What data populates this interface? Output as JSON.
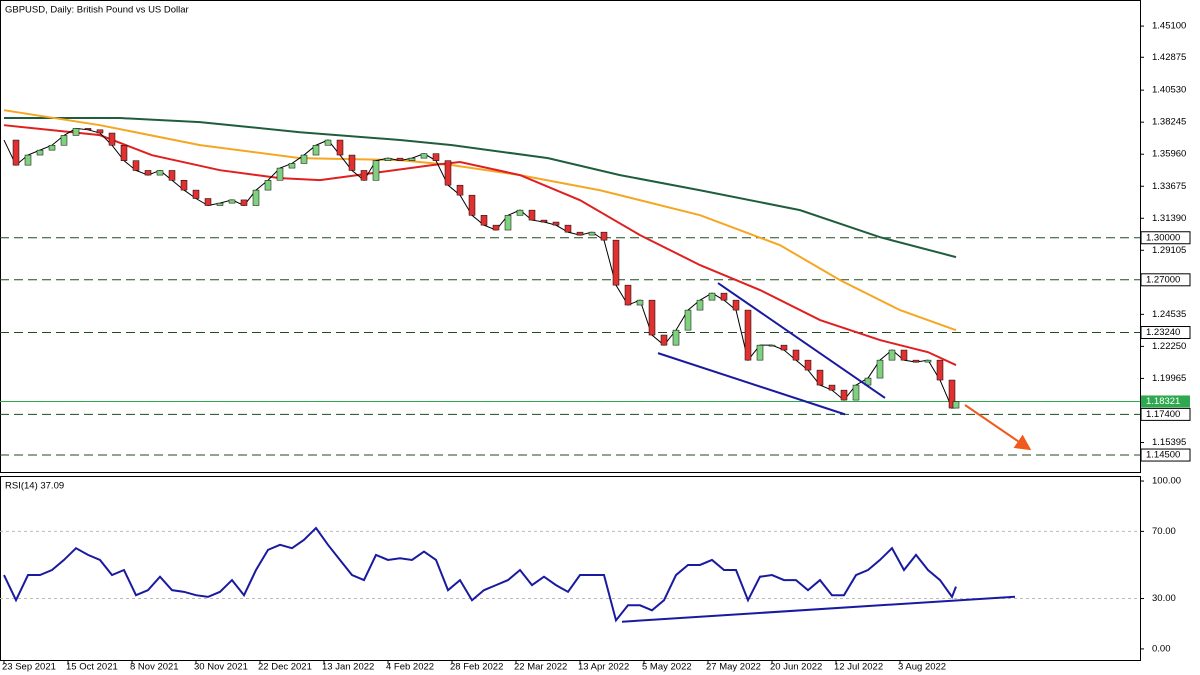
{
  "chart_data": [
    {
      "type": "price",
      "title": "GBPUSD, Daily:  British Pound vs US Dollar",
      "xlim": [
        -1,
        284
      ],
      "ylim": [
        1.1329,
        1.4696
      ],
      "yticks": [
        {
          "value": 1.451,
          "label": "1.45100"
        },
        {
          "value": 1.42875,
          "label": "1.42875"
        },
        {
          "value": 1.4053,
          "label": "1.40530"
        },
        {
          "value": 1.38245,
          "label": "1.38245"
        },
        {
          "value": 1.3596,
          "label": "1.35960"
        },
        {
          "value": 1.33675,
          "label": "1.33675"
        },
        {
          "value": 1.3139,
          "label": "1.31390"
        },
        {
          "value": 1.29105,
          "label": "1.29105"
        },
        {
          "value": 1.24535,
          "label": "1.24535"
        },
        {
          "value": 1.2225,
          "label": "1.22250"
        },
        {
          "value": 1.19965,
          "label": "1.19965"
        },
        {
          "value": 1.15395,
          "label": "1.15395"
        }
      ],
      "levels": [
        {
          "value": 1.3,
          "label": "1.30000"
        },
        {
          "value": 1.27,
          "label": "1.27000"
        },
        {
          "value": 1.2324,
          "label": "1.23240"
        },
        {
          "value": 1.174,
          "label": "1.17400"
        },
        {
          "value": 1.145,
          "label": "1.14500"
        }
      ],
      "level_color": "#1e4d1e",
      "last_price": {
        "value": 1.18321,
        "label": "1.18321",
        "color": "#2fa84f"
      },
      "price": {
        "up_color": "#7fd07f",
        "down_color": "#e03030",
        "x": [
          0,
          3,
          6,
          9,
          12,
          15,
          18,
          21,
          24,
          27,
          30,
          33,
          36,
          39,
          42,
          45,
          48,
          51,
          54,
          57,
          60,
          63,
          66,
          69,
          72,
          75,
          78,
          81,
          84,
          87,
          90,
          93,
          96,
          99,
          102,
          105,
          108,
          111,
          114,
          117,
          120,
          123,
          126,
          129,
          132,
          135,
          138,
          141,
          144,
          147,
          150,
          153,
          156,
          159,
          162,
          165,
          168,
          171,
          174,
          177,
          180,
          183,
          186,
          189,
          192,
          195,
          198,
          201,
          204,
          207,
          210,
          213,
          216,
          219,
          222,
          225,
          228,
          231,
          234,
          237,
          238
        ],
        "values": [
          1.3697,
          1.3518,
          1.359,
          1.3625,
          1.366,
          1.373,
          1.378,
          1.377,
          1.3747,
          1.366,
          1.355,
          1.348,
          1.3447,
          1.348,
          1.341,
          1.334,
          1.328,
          1.323,
          1.3247,
          1.327,
          1.323,
          1.334,
          1.341,
          1.3497,
          1.353,
          1.359,
          1.366,
          1.3697,
          1.359,
          1.348,
          1.341,
          1.355,
          1.3568,
          1.355,
          1.3568,
          1.36,
          1.355,
          1.3375,
          1.3304,
          1.316,
          1.309,
          1.3055,
          1.316,
          1.3197,
          1.3126,
          1.3112,
          1.309,
          1.304,
          1.3019,
          1.304,
          1.2983,
          1.2662,
          1.252,
          1.2555,
          1.2306,
          1.2234,
          1.2341,
          1.2484,
          1.2555,
          1.2605,
          1.2555,
          1.2484,
          1.2127,
          1.2234,
          1.2234,
          1.2199,
          1.2127,
          1.2056,
          1.1949,
          1.1913,
          1.1842,
          1.1949,
          1.1999,
          1.2127,
          1.2199,
          1.2127,
          1.2113,
          1.2127,
          1.1985,
          1.1785,
          1.1832
        ]
      },
      "moving_averages": [
        {
          "color": "#1f5e3c",
          "x": [
            0,
            29,
            49,
            74,
            99,
            112,
            136,
            154,
            174,
            199,
            219,
            238
          ],
          "values": [
            1.3854,
            1.3854,
            1.3825,
            1.3753,
            1.3697,
            1.3661,
            1.3568,
            1.3447,
            1.3339,
            1.3197,
            1.3004,
            1.2862
          ]
        },
        {
          "color": "#f5a623",
          "x": [
            0,
            24,
            49,
            74,
            99,
            112,
            129,
            149,
            174,
            194,
            209,
            224,
            238
          ],
          "values": [
            1.391,
            1.3803,
            1.3661,
            1.3568,
            1.3554,
            1.3518,
            1.3447,
            1.3339,
            1.3161,
            1.2947,
            1.2698,
            1.2484,
            1.2341
          ]
        },
        {
          "color": "#e02020",
          "x": [
            0,
            24,
            37,
            54,
            69,
            79,
            94,
            107,
            114,
            129,
            144,
            159,
            174,
            189,
            204,
            219,
            231,
            238
          ],
          "values": [
            1.3803,
            1.3732,
            1.3589,
            1.3482,
            1.3425,
            1.3411,
            1.3468,
            1.3518,
            1.354,
            1.3447,
            1.3268,
            1.3019,
            1.2805,
            1.2627,
            1.2413,
            1.227,
            1.2184,
            1.2092
          ]
        }
      ],
      "trendlines": [
        {
          "color": "#1a1aa0",
          "points": [
            [
              163.5,
              1.2177
            ],
            [
              210.25,
              1.174
            ]
          ]
        },
        {
          "color": "#1a1aa0",
          "points": [
            [
              178.5,
              1.2677
            ],
            [
              220.25,
              1.1857
            ]
          ]
        }
      ],
      "arrow": {
        "color": "#f05a1a",
        "points": [
          [
            240.25,
            1.1807
          ],
          [
            256,
            1.15
          ]
        ]
      }
    },
    {
      "type": "oscillator",
      "title": "RSI(14) 37.09",
      "xlim": [
        -1,
        284
      ],
      "ylim": [
        -6.6,
        103
      ],
      "yticks": [
        {
          "value": 100,
          "label": "100.00"
        },
        {
          "value": 70,
          "label": "70.00"
        },
        {
          "value": 30,
          "label": "30.00"
        },
        {
          "value": 0,
          "label": "0.00"
        }
      ],
      "levels": [
        70,
        30
      ],
      "color": "#1a1aa0",
      "x": [
        0,
        3,
        6,
        9,
        12,
        15,
        18,
        21,
        24,
        27,
        30,
        33,
        36,
        39,
        42,
        45,
        48,
        51,
        54,
        57,
        60,
        63,
        66,
        69,
        72,
        75,
        78,
        81,
        84,
        87,
        90,
        93,
        96,
        99,
        102,
        105,
        108,
        111,
        114,
        117,
        120,
        123,
        126,
        129,
        132,
        135,
        138,
        141,
        144,
        147,
        150,
        153,
        156,
        159,
        162,
        165,
        168,
        171,
        174,
        177,
        180,
        183,
        186,
        189,
        192,
        195,
        198,
        201,
        204,
        207,
        210,
        213,
        216,
        219,
        222,
        225,
        228,
        231,
        234,
        237,
        238
      ],
      "values": [
        44,
        29,
        44,
        44,
        47,
        53,
        60,
        56,
        53,
        44,
        47,
        32,
        35,
        43,
        35,
        34,
        32,
        31,
        34,
        41,
        32,
        47,
        59,
        62,
        60,
        65,
        72,
        62,
        53,
        44,
        41,
        56,
        53,
        54,
        53,
        58,
        53,
        35,
        41,
        29,
        35,
        38,
        41,
        47,
        38,
        43,
        38,
        34,
        44,
        44,
        44,
        17,
        26,
        26,
        23,
        29,
        44,
        50,
        50,
        53,
        47,
        47,
        29,
        43,
        44,
        41,
        41,
        35,
        41,
        32,
        32,
        44,
        47,
        53,
        60,
        47,
        56,
        47,
        41,
        31,
        37.09
      ],
      "trendlines": [
        {
          "color": "#1a1aa0",
          "points": [
            [
              154.5,
              16.2
            ],
            [
              252.75,
              31.1
            ]
          ]
        }
      ],
      "xticks": [
        {
          "value": 0,
          "label": "23 Sep 2021"
        },
        {
          "value": 16,
          "label": "15 Oct 2021"
        },
        {
          "value": 32,
          "label": "8 Nov 2021"
        },
        {
          "value": 48,
          "label": "30 Nov 2021"
        },
        {
          "value": 64,
          "label": "22 Dec 2021"
        },
        {
          "value": 80,
          "label": "13 Jan 2022"
        },
        {
          "value": 96,
          "label": "4 Feb 2022"
        },
        {
          "value": 112,
          "label": "28 Feb 2022"
        },
        {
          "value": 128,
          "label": "22 Mar 2022"
        },
        {
          "value": 144,
          "label": "13 Apr 2022"
        },
        {
          "value": 160,
          "label": "5 May 2022"
        },
        {
          "value": 176,
          "label": "27 May 2022"
        },
        {
          "value": 192,
          "label": "20 Jun 2022"
        },
        {
          "value": 208,
          "label": "12 Jul 2022"
        },
        {
          "value": 224,
          "label": "3 Aug 2022"
        }
      ]
    }
  ]
}
